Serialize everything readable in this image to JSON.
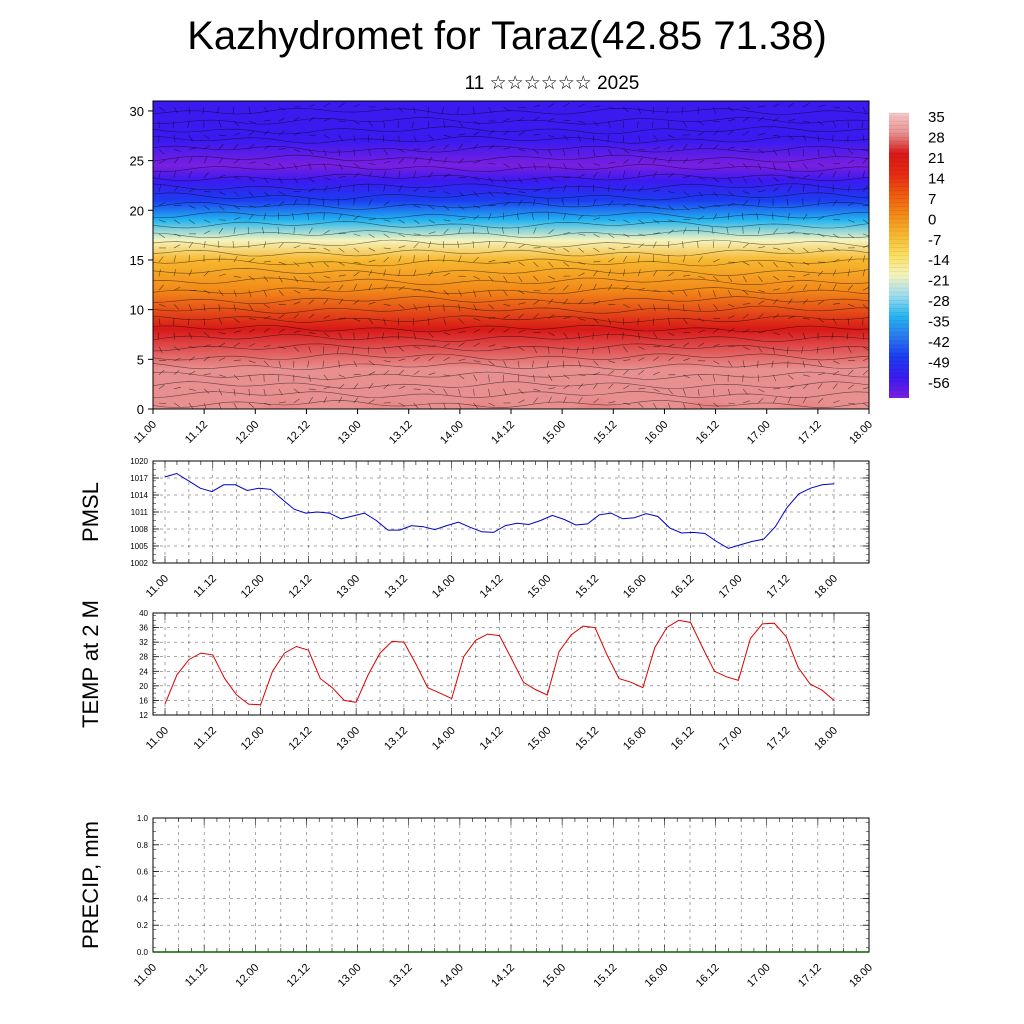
{
  "header": {
    "title": "Kazhydromet for Taraz(42.85 71.38)",
    "subtitle": "11 ☆☆☆☆☆☆ 2025"
  },
  "chart_data": [
    {
      "type": "heatmap",
      "name": "temperature-wind-cross-section",
      "x_ticks": [
        "11.00",
        "11.12",
        "12.00",
        "12.12",
        "13.00",
        "13.12",
        "14.00",
        "14.12",
        "15.00",
        "15.12",
        "16.00",
        "16.12",
        "17.00",
        "17.12",
        "18.00"
      ],
      "y_ticks": [
        0,
        5,
        10,
        15,
        20,
        25,
        30
      ],
      "ylim": [
        0,
        31
      ],
      "colorbar_labels": [
        35,
        28,
        21,
        14,
        7,
        0,
        -7,
        -14,
        -21,
        -28,
        -35,
        -42,
        -49,
        -56
      ],
      "colormap": [
        "#7a1fe0",
        "#3b1af0",
        "#1c3cf0",
        "#2a78f0",
        "#24b4f0",
        "#9adcf0",
        "#f4f4c0",
        "#fae060",
        "#f7b830",
        "#f28a18",
        "#ee5a10",
        "#e62a12",
        "#d81818",
        "#e89090",
        "#f4c8c8"
      ],
      "temperature_profile": [
        {
          "height": 0,
          "value": 30
        },
        {
          "height": 4,
          "value": 28
        },
        {
          "height": 8,
          "value": 19
        },
        {
          "height": 12,
          "value": 4
        },
        {
          "height": 15,
          "value": -7
        },
        {
          "height": 17,
          "value": -20
        },
        {
          "height": 19,
          "value": -30
        },
        {
          "height": 21,
          "value": -42
        },
        {
          "height": 23,
          "value": -52
        },
        {
          "height": 24.5,
          "value": -56
        },
        {
          "height": 27,
          "value": -52
        },
        {
          "height": 31,
          "value": -50
        }
      ]
    },
    {
      "type": "line",
      "ylabel": "PMSL",
      "ylim": [
        1002,
        1020
      ],
      "y_ticks": [
        1002,
        1005,
        1008,
        1011,
        1014,
        1017,
        1020
      ],
      "x_ticks": [
        "11.00",
        "11.12",
        "12.00",
        "12.12",
        "13.00",
        "13.12",
        "14.00",
        "14.12",
        "15.00",
        "15.12",
        "16.00",
        "16.12",
        "17.00",
        "17.12",
        "18.00"
      ],
      "line_color": "#0000cc",
      "series": [
        {
          "values": [
            1017.2,
            1017.8,
            1016.5,
            1015.2,
            1014.6,
            1015.8,
            1015.8,
            1014.8,
            1015.2,
            1015.0,
            1013.2,
            1011.5,
            1010.8,
            1011.0,
            1010.8,
            1009.8,
            1010.3,
            1010.8,
            1009.5,
            1007.8,
            1007.8,
            1008.6,
            1008.4,
            1007.9,
            1008.6,
            1009.2,
            1008.3,
            1007.5,
            1007.4,
            1008.6,
            1009.0,
            1008.8,
            1009.5,
            1010.4,
            1009.7,
            1008.7,
            1008.9,
            1010.5,
            1010.8,
            1009.8,
            1010.0,
            1010.7,
            1010.2,
            1008.2,
            1007.3,
            1007.4,
            1007.2,
            1005.8,
            1004.6,
            1005.2,
            1005.8,
            1006.2,
            1008.4,
            1011.8,
            1014.2,
            1015.2,
            1015.8,
            1016.0
          ]
        }
      ]
    },
    {
      "type": "line",
      "ylabel": "TEMP at 2 M",
      "ylim": [
        12,
        40
      ],
      "y_ticks": [
        12,
        16,
        20,
        24,
        28,
        32,
        36,
        40
      ],
      "x_ticks": [
        "11.00",
        "11.12",
        "12.00",
        "12.12",
        "13.00",
        "13.12",
        "14.00",
        "14.12",
        "15.00",
        "15.12",
        "16.00",
        "16.12",
        "17.00",
        "17.12",
        "18.00"
      ],
      "line_color": "#dd0000",
      "series": [
        {
          "values": [
            15.0,
            23.0,
            27.2,
            29.0,
            28.5,
            22.0,
            17.5,
            15.0,
            14.8,
            24.0,
            29.0,
            30.8,
            29.8,
            22.0,
            19.5,
            16.0,
            15.5,
            23.0,
            29.0,
            32.2,
            32.0,
            26.0,
            19.5,
            18.0,
            16.5,
            28.0,
            32.5,
            34.2,
            33.8,
            27.5,
            21.0,
            19.0,
            17.5,
            29.5,
            34.0,
            36.4,
            36.0,
            28.5,
            22.0,
            21.0,
            19.5,
            30.5,
            36.0,
            38.0,
            37.4,
            30.5,
            24.0,
            22.5,
            21.5,
            33.0,
            37.0,
            37.2,
            33.5,
            25.0,
            20.5,
            18.8,
            16.0
          ]
        }
      ]
    },
    {
      "type": "line",
      "ylabel": "PRECIP, mm",
      "ylim": [
        0.0,
        1.0
      ],
      "y_ticks": [
        "0.0",
        "0.2",
        "0.4",
        "0.6",
        "0.8",
        "1.0"
      ],
      "x_ticks": [
        "11.00",
        "11.12",
        "12.00",
        "12.12",
        "13.00",
        "13.12",
        "14.00",
        "14.12",
        "15.00",
        "15.12",
        "16.00",
        "16.12",
        "17.00",
        "17.12",
        "18.00"
      ],
      "line_color": "#006400",
      "series": [
        {
          "values": [
            0,
            0,
            0,
            0,
            0,
            0,
            0,
            0,
            0,
            0,
            0,
            0,
            0,
            0,
            0,
            0,
            0,
            0,
            0,
            0,
            0,
            0,
            0,
            0,
            0,
            0,
            0,
            0,
            0,
            0,
            0,
            0,
            0,
            0,
            0,
            0,
            0,
            0,
            0,
            0,
            0,
            0,
            0,
            0,
            0,
            0,
            0,
            0,
            0,
            0,
            0,
            0,
            0,
            0,
            0,
            0,
            0
          ]
        }
      ]
    }
  ]
}
